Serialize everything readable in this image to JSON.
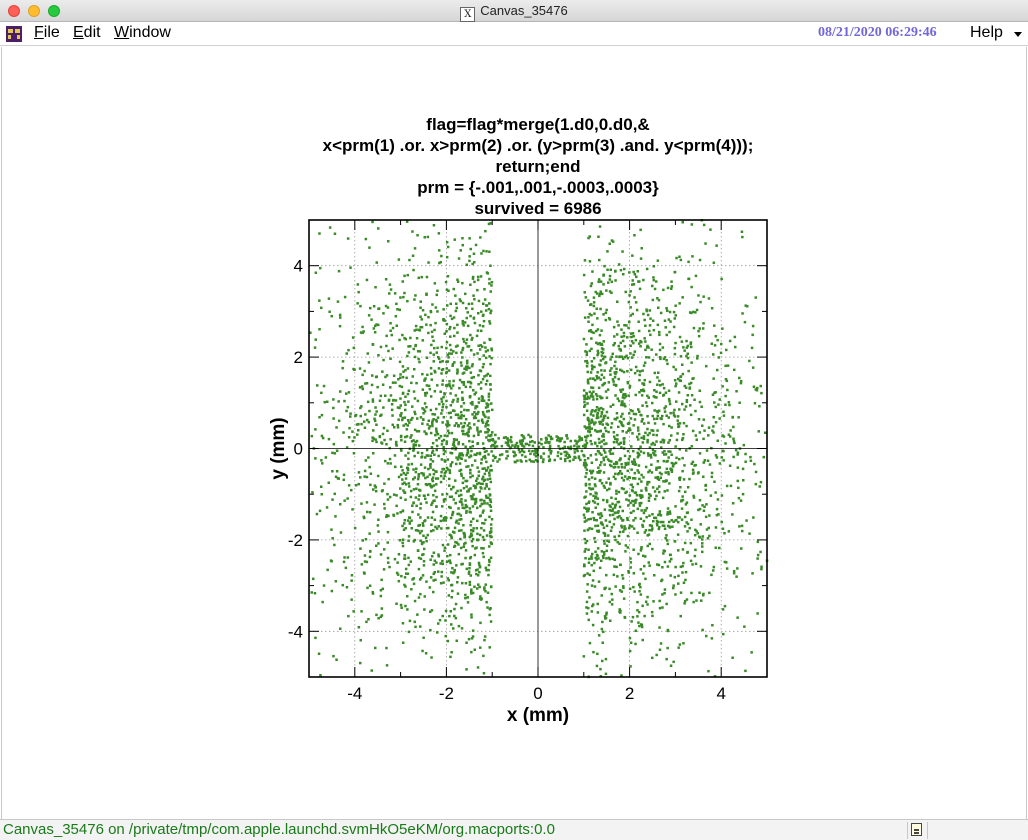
{
  "window": {
    "title": "Canvas_35476",
    "x_glyph": "X"
  },
  "menubar": {
    "items": [
      {
        "label": "File",
        "underline": "F",
        "rest": "ile"
      },
      {
        "label": "Edit",
        "underline": "E",
        "rest": "dit"
      },
      {
        "label": "Window",
        "underline": "W",
        "rest": "indow"
      }
    ],
    "datetime": "08/21/2020 06:29:46",
    "help": "Help"
  },
  "status": {
    "text": "Canvas_35476 on /private/tmp/com.apple.launchd.svmHkO5eKM/org.macports:0.0"
  },
  "chart_data": {
    "type": "scatter",
    "title_lines": [
      "flag=flag*merge(1.d0,0.d0,&",
      "x<prm(1) .or. x>prm(2) .or. (y>prm(3) .and. y<prm(4)));",
      "return;end",
      "prm = {-.001,.001,-.0003,.0003}",
      "survived = 6986"
    ],
    "xlabel": "x (mm)",
    "ylabel": "y (mm)",
    "xlim": [
      -5,
      5
    ],
    "ylim": [
      -5,
      5
    ],
    "xticks": [
      -4,
      -2,
      0,
      2,
      4
    ],
    "yticks": [
      -4,
      -2,
      0,
      2,
      4
    ],
    "grid": true,
    "point_color": "#3a8a28",
    "survived": 6986,
    "cut_x": [
      -1,
      1
    ],
    "cut_y": [
      -0.3,
      0.3
    ]
  }
}
